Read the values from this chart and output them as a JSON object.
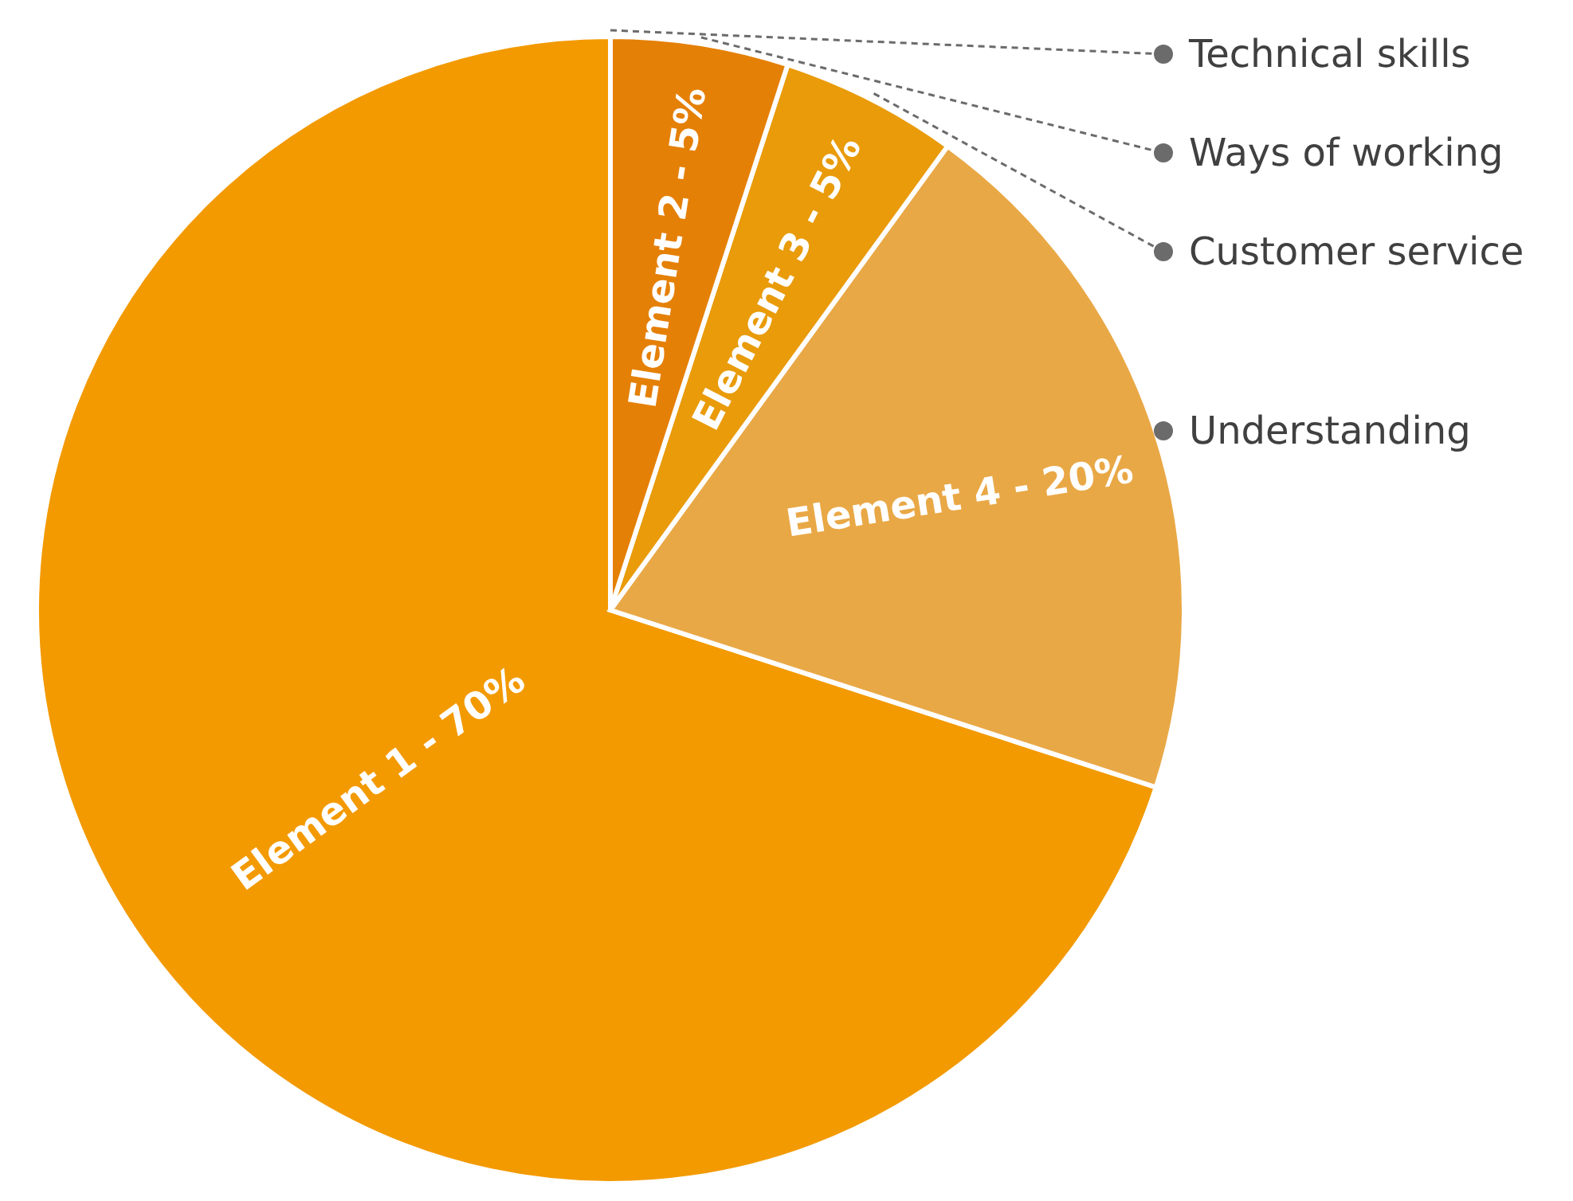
{
  "chart_data": {
    "type": "pie",
    "categories": [
      "Element 1 - 70%",
      "Element 4 - 20%",
      "Element 3 - 5%",
      "Element 2 - 5%"
    ],
    "values": [
      70,
      20,
      5,
      5
    ],
    "colors": [
      "#f39a00",
      "#e9a846",
      "#e99b0a",
      "#e58006"
    ],
    "annotations": [
      "Technical skills",
      "Understanding",
      "Customer service",
      "Ways of working"
    ]
  }
}
